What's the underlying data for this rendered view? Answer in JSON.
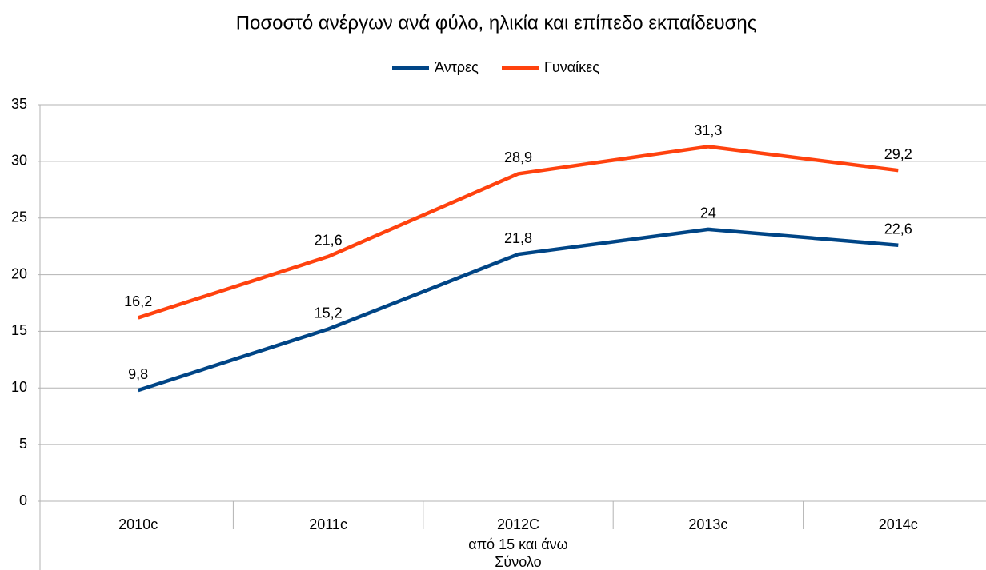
{
  "chart_data": {
    "type": "line",
    "title": "Ποσοστό ανέργων ανά φύλο, ηλικία και επίπεδο εκπαίδευσης",
    "categories": [
      "2010c",
      "2011c",
      "2012C",
      "2013c",
      "2014c"
    ],
    "category_group_labels": [
      "από 15 και άνω",
      "Σύνολο"
    ],
    "series": [
      {
        "name": "Άντρες",
        "color": "#004586",
        "values": [
          9.8,
          15.2,
          21.8,
          24,
          22.6
        ],
        "value_labels": [
          "9,8",
          "15,2",
          "21,8",
          "24",
          "22,6"
        ]
      },
      {
        "name": "Γυναίκες",
        "color": "#ff420e",
        "values": [
          16.2,
          21.6,
          28.9,
          31.3,
          29.2
        ],
        "value_labels": [
          "16,2",
          "21,6",
          "28,9",
          "31,3",
          "29,2"
        ]
      }
    ],
    "ylim": [
      0,
      35
    ],
    "yticks": [
      0,
      5,
      10,
      15,
      20,
      25,
      30,
      35
    ],
    "grid": true,
    "legend": "top"
  }
}
